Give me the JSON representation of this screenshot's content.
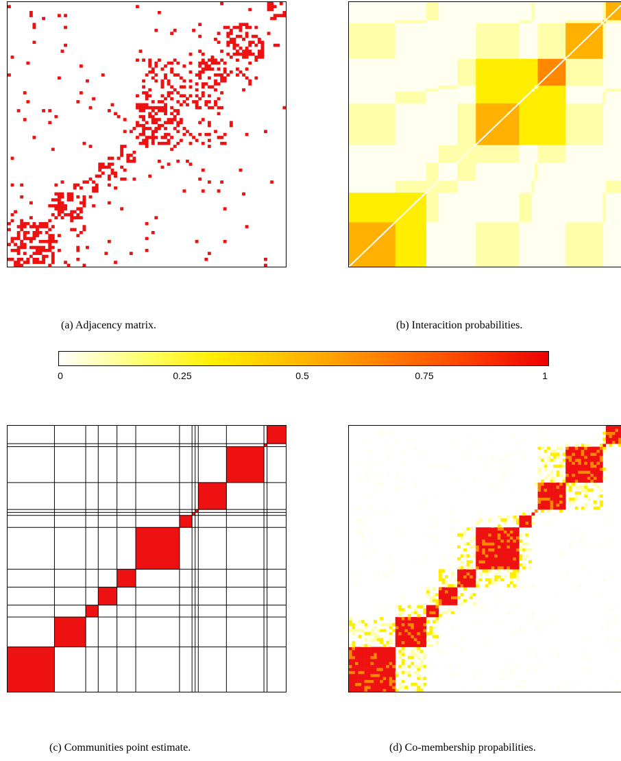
{
  "captions": {
    "a": "(a)  Adjacency matrix.",
    "b": "(b)  Interacition probabilities.",
    "c": "(c)  Communities point estimate.",
    "d": "(d)  Co-membership propabilities."
  },
  "chart_data": [
    {
      "type": "heatmap",
      "panel": "a",
      "title": "",
      "description_color": "#ee1111",
      "values": "binary adjacency pattern with dense blocks along the anti-diagonal"
    },
    {
      "type": "heatmap",
      "panel": "b",
      "title": "",
      "colorscale_range": [
        0,
        1
      ]
    },
    {
      "type": "heatmap",
      "panel": "c",
      "title": "",
      "community_sizes": [
        15,
        10,
        4,
        6,
        6,
        14,
        4,
        1,
        1,
        9,
        12,
        1,
        6
      ]
    },
    {
      "type": "heatmap",
      "panel": "d",
      "title": "",
      "colorscale_range": [
        0,
        1
      ]
    }
  ],
  "colorbar": {
    "ticks": [
      {
        "value": 0,
        "label": "0"
      },
      {
        "value": 0.25,
        "label": "0.25"
      },
      {
        "value": 0.5,
        "label": "0.5"
      },
      {
        "value": 0.75,
        "label": "0.75"
      },
      {
        "value": 1,
        "label": "1"
      }
    ]
  },
  "colors": {
    "red": "#ee1111",
    "deep_orange": "#ff8800",
    "orange": "#ffb000",
    "yellow": "#ffee00",
    "pale_yellow": "#ffffaa",
    "very_pale": "#fffff0"
  }
}
